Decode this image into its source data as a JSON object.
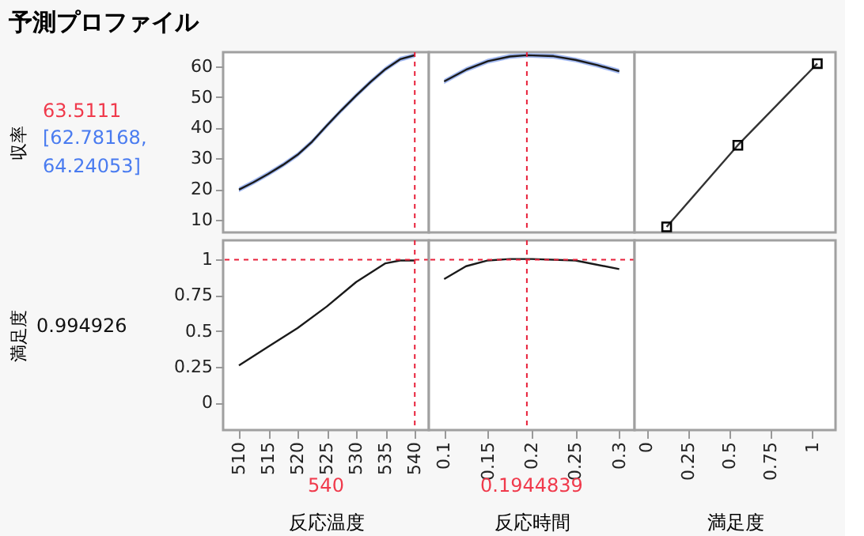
{
  "chart_data": [
    {
      "type": "line",
      "title": "予測プロファイル",
      "ylabel": "収率",
      "annotations": [
        "63.5111",
        "[62.78168, 64.24053]"
      ],
      "x": [
        510,
        512.5,
        515,
        517.5,
        520,
        522.5,
        525,
        527.5,
        530,
        532.5,
        535,
        537.5,
        540
      ],
      "xlim": [
        507.3,
        542.4
      ],
      "ylim": [
        6,
        64.5
      ],
      "yticks": [
        10,
        20,
        30,
        40,
        50,
        60
      ],
      "tick_labels": "y",
      "marker": "none",
      "series": [
        {
          "color": "#1a1a1a",
          "values": [
            19.9,
            22.3,
            25.0,
            27.9,
            31.2,
            35.5,
            40.7,
            45.7,
            50.4,
            54.9,
            59.0,
            62.2,
            63.5
          ],
          "lower": [
            19.1,
            21.5,
            24.2,
            27.1,
            30.4,
            34.7,
            39.9,
            44.9,
            49.6,
            54.1,
            58.2,
            61.4,
            62.8
          ],
          "upper": [
            20.7,
            23.1,
            25.8,
            28.7,
            32.0,
            36.3,
            41.5,
            46.5,
            51.2,
            55.7,
            59.8,
            63.0,
            64.2
          ]
        }
      ],
      "ref_lines": [
        {
          "axis": "x",
          "value": 540,
          "color": "#e8213a",
          "line_style": "dashed"
        }
      ]
    },
    {
      "type": "line",
      "x": [
        0.1,
        0.125,
        0.15,
        0.175,
        0.1944839,
        0.225,
        0.25,
        0.275,
        0.3
      ],
      "xlim": [
        0.0825,
        0.3175
      ],
      "ylim": [
        6,
        64.5
      ],
      "tick_labels": false,
      "marker": "none",
      "series": [
        {
          "color": "#1a1a1a",
          "values": [
            55.0,
            58.8,
            61.6,
            63.1,
            63.5,
            63.2,
            62.0,
            60.3,
            58.3
          ],
          "lower": [
            54.2,
            58.0,
            60.8,
            62.3,
            62.8,
            62.4,
            61.2,
            59.5,
            57.5
          ],
          "upper": [
            55.8,
            59.6,
            62.4,
            63.9,
            64.2,
            64.0,
            62.8,
            61.1,
            59.1
          ]
        }
      ],
      "ref_lines": [
        {
          "axis": "x",
          "value": 0.1944839,
          "color": "#e8213a",
          "line_style": "dashed"
        }
      ]
    },
    {
      "type": "line",
      "x": [
        0.12,
        0.55,
        1.03
      ],
      "xlim": [
        -0.074,
        1.14
      ],
      "ylim": [
        6,
        64.5
      ],
      "tick_labels": false,
      "marker": "square",
      "series": [
        {
          "color": "#333333",
          "values": [
            7.8,
            34.3,
            60.8
          ]
        }
      ]
    },
    {
      "type": "line",
      "ylabel": "満足度",
      "xlabel": "反応温度",
      "annotations": [
        "0.994926",
        "540"
      ],
      "x": [
        510,
        515,
        520,
        525,
        530,
        535,
        537.5,
        540
      ],
      "xlim": [
        507.3,
        542.4
      ],
      "xticks": [
        510,
        515,
        520,
        525,
        530,
        535,
        540
      ],
      "ylim": [
        -0.19,
        1.13
      ],
      "yticks": [
        0,
        0.25,
        0.5,
        0.75,
        1
      ],
      "marker": "none",
      "series": [
        {
          "color": "#1a1a1a",
          "values": [
            0.26,
            0.39,
            0.52,
            0.67,
            0.84,
            0.97,
            0.99,
            0.99
          ]
        }
      ],
      "ref_lines": [
        {
          "axis": "x",
          "value": 540,
          "color": "#e8213a",
          "line_style": "dashed"
        },
        {
          "axis": "y",
          "value": 0.994926,
          "color": "#e8213a",
          "line_style": "dashed"
        }
      ]
    },
    {
      "type": "line",
      "xlabel": "反応時間",
      "annotations": [
        "0.1944839"
      ],
      "x": [
        0.1,
        0.125,
        0.15,
        0.175,
        0.2,
        0.25,
        0.3
      ],
      "xlim": [
        0.0825,
        0.3175
      ],
      "xticks": [
        0.1,
        0.15,
        0.2,
        0.25,
        0.3
      ],
      "ylim": [
        -0.19,
        1.13
      ],
      "tick_labels": "x",
      "marker": "none",
      "series": [
        {
          "color": "#1a1a1a",
          "values": [
            0.86,
            0.95,
            0.99,
            1.0,
            1.0,
            0.99,
            0.93
          ]
        }
      ],
      "ref_lines": [
        {
          "axis": "x",
          "value": 0.1944839,
          "color": "#e8213a",
          "line_style": "dashed"
        },
        {
          "axis": "y",
          "value": 0.994926,
          "color": "#e8213a",
          "line_style": "dashed"
        }
      ]
    },
    {
      "type": "line",
      "xlabel": "満足度",
      "xlim": [
        -0.074,
        1.14
      ],
      "xticks": [
        0,
        0.25,
        0.5,
        0.75,
        1
      ],
      "ylim": [
        -0.19,
        1.13
      ],
      "tick_labels": "x"
    }
  ]
}
